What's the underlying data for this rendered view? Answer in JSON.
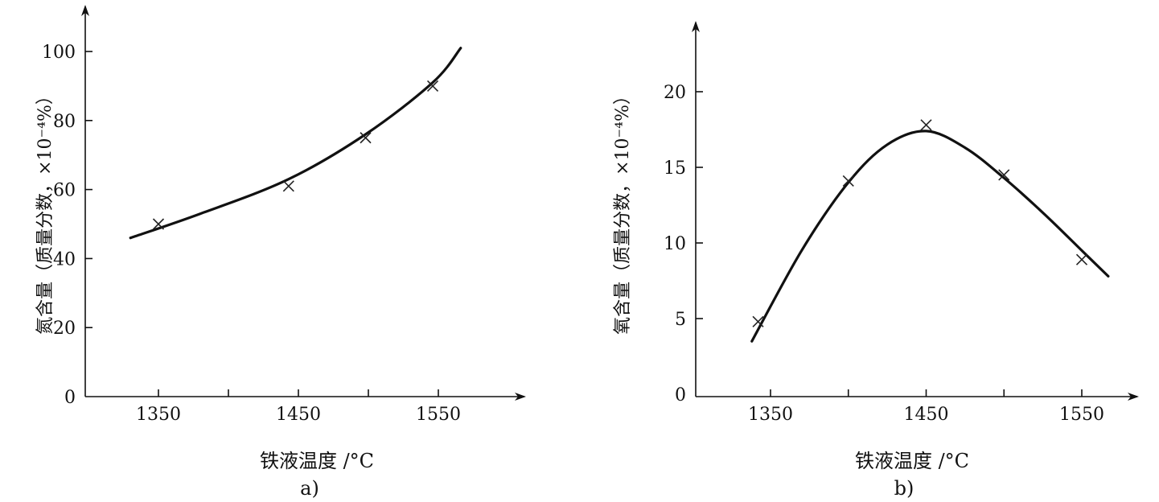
{
  "chart_data": [
    {
      "type": "scatter",
      "panel_label": "a)",
      "xlabel": "铁液温度 /°C",
      "ylabel": "氮含量（质量分数，×10⁻⁴%）",
      "xticks": [
        1350,
        1450,
        1550
      ],
      "yticks": [
        0,
        20,
        40,
        60,
        80,
        100
      ],
      "xlim": [
        1265,
        1565
      ],
      "ylim": [
        0,
        100
      ],
      "grid": false,
      "series": [
        {
          "markers": {
            "x": [
              1350,
              1443,
              1498,
              1546
            ],
            "y": [
              50,
              61,
              75,
              90
            ]
          }
        },
        {
          "curve": {
            "x": [
              1330,
              1380,
              1443,
              1498,
              1546,
              1566
            ],
            "y": [
              46,
              53,
              63,
              76,
              91,
              101
            ]
          }
        }
      ]
    },
    {
      "type": "scatter",
      "panel_label": "b)",
      "xlabel": "铁液温度 /°C",
      "ylabel": "氧含量（质量分数，×10⁻⁴%）",
      "xticks": [
        1350,
        1450,
        1550
      ],
      "yticks": [
        0,
        5,
        10,
        15,
        20
      ],
      "xlim": [
        1265,
        1565
      ],
      "ylim": [
        0,
        20
      ],
      "grid": false,
      "series": [
        {
          "markers": {
            "x": [
              1342,
              1400,
              1450,
              1500,
              1550
            ],
            "y": [
              4.8,
              14.1,
              17.8,
              14.5,
              8.9
            ]
          }
        },
        {
          "curve": {
            "x": [
              1338,
              1370,
              1400,
              1425,
              1450,
              1475,
              1500,
              1525,
              1550,
              1567
            ],
            "y": [
              3.5,
              9.5,
              14.0,
              16.5,
              17.4,
              16.3,
              14.3,
              12.0,
              9.5,
              7.8
            ]
          }
        }
      ]
    }
  ]
}
